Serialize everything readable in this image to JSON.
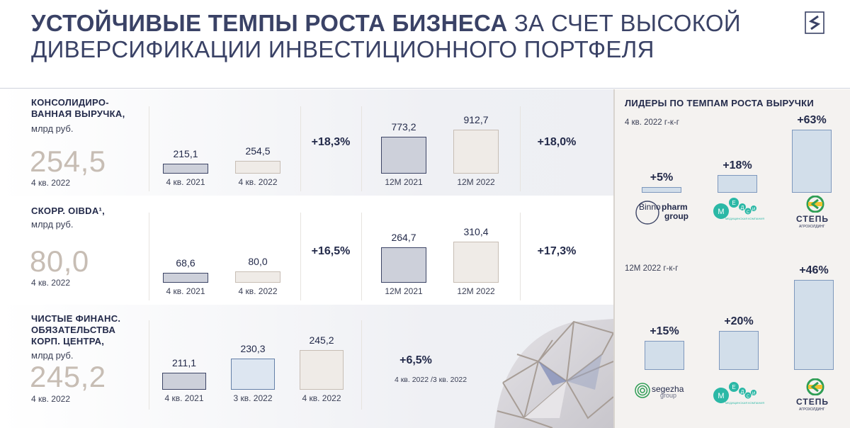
{
  "header": {
    "title_bold": "УСТОЙЧИВЫЕ ТЕМПЫ РОСТА БИЗНЕСА",
    "title_rest": " ЗА СЧЕТ ВЫСОКОЙ ДИВЕРСИФИКАЦИИ ИНВЕСТИЦИОННОГО ПОРТФЕЛЯ"
  },
  "rows": [
    {
      "label": "КОНСОЛИДИРО-\nВАННАЯ ВЫРУЧКА,",
      "unit": "млрд руб.",
      "big_value": "254,5",
      "big_date": "4 кв. 2022",
      "growth_q": "+18,3%",
      "growth_y": "+18,0%"
    },
    {
      "label": "СКОРР. OIBDA¹,",
      "unit": "млрд руб.",
      "big_value": "80,0",
      "big_date": "4 кв. 2022",
      "growth_q": "+16,5%",
      "growth_y": "+17,3%"
    },
    {
      "label": "ЧИСТЫЕ ФИНАНС.\nОБЯЗАТЕЛЬСТВА\nКОРП. ЦЕНТРА,",
      "unit": "млрд руб.",
      "big_value": "245,2",
      "big_date": "4 кв. 2022",
      "growth_q": "+6,5%",
      "growth_note": "4 кв. 2022 /3 кв. 2022"
    }
  ],
  "chart_data": [
    {
      "type": "bar",
      "title": "КОНСОЛИДИРОВАННАЯ ВЫРУЧКА (квартал)",
      "categories": [
        "4 кв. 2021",
        "4 кв. 2022"
      ],
      "values": [
        215.1,
        254.5
      ],
      "labels": [
        "215,1",
        "254,5"
      ],
      "colors": [
        "#cdd0da",
        "#efebe7"
      ]
    },
    {
      "type": "bar",
      "title": "КОНСОЛИДИРОВАННАЯ ВЫРУЧКА (12М)",
      "categories": [
        "12М 2021",
        "12М 2022"
      ],
      "values": [
        773.2,
        912.7
      ],
      "labels": [
        "773,2",
        "912,7"
      ],
      "colors": [
        "#cdd0da",
        "#efebe7"
      ]
    },
    {
      "type": "bar",
      "title": "СКОРР. OIBDA (квартал)",
      "categories": [
        "4 кв. 2021",
        "4 кв. 2022"
      ],
      "values": [
        68.6,
        80.0
      ],
      "labels": [
        "68,6",
        "80,0"
      ],
      "colors": [
        "#cdd0da",
        "#efebe7"
      ]
    },
    {
      "type": "bar",
      "title": "СКОРР. OIBDA (12М)",
      "categories": [
        "12М 2021",
        "12М 2022"
      ],
      "values": [
        264.7,
        310.4
      ],
      "labels": [
        "264,7",
        "310,4"
      ],
      "colors": [
        "#cdd0da",
        "#efebe7"
      ]
    },
    {
      "type": "bar",
      "title": "ЧИСТЫЕ ФИНАНС. ОБЯЗАТЕЛЬСТВА КОРП. ЦЕНТРА",
      "categories": [
        "4 кв. 2021",
        "3 кв. 2022",
        "4 кв. 2022"
      ],
      "values": [
        211.1,
        230.3,
        245.2
      ],
      "labels": [
        "211,1",
        "230,3",
        "245,2"
      ],
      "colors": [
        "#cdd0da",
        "#dde6f1",
        "#efebe7"
      ]
    },
    {
      "type": "bar",
      "title": "ЛИДЕРЫ ПО ТЕМПАМ РОСТА ВЫРУЧКИ — 4 кв. 2022 г-к-г",
      "categories": [
        "Binnopharm group",
        "Медси",
        "Степь"
      ],
      "values": [
        5,
        18,
        63
      ],
      "labels": [
        "+5%",
        "+18%",
        "+63%"
      ]
    },
    {
      "type": "bar",
      "title": "ЛИДЕРЫ ПО ТЕМПАМ РОСТА ВЫРУЧКИ — 12М 2022 г-к-г",
      "categories": [
        "Segezha group",
        "Медси",
        "Степь"
      ],
      "values": [
        15,
        20,
        46
      ],
      "labels": [
        "+15%",
        "+20%",
        "+46%"
      ]
    }
  ],
  "right_panel": {
    "title": "ЛИДЕРЫ ПО ТЕМПАМ  РОСТА ВЫРУЧКИ",
    "sub1": "4 кв. 2022 г-к-г",
    "sub2": "12М 2022 г-к-г",
    "brands": {
      "binno_1": "Binno",
      "binno_2": "pharm",
      "binno_3": "group",
      "medsi_small": "МЕДИЦИНСКАЯ КОМПАНИЯ",
      "step": "СТЕПЬ",
      "step_small": "АГРОХОЛДИНГ",
      "segezha_1": "segezha",
      "segezha_2": "group"
    }
  },
  "colors": {
    "accent": "#3a4266",
    "bar_dark": "#cdd0da",
    "bar_light": "#efebe7",
    "bar_blue": "#dde6f1",
    "medsi": "#2bb8a6",
    "step": "#2f9e55"
  }
}
